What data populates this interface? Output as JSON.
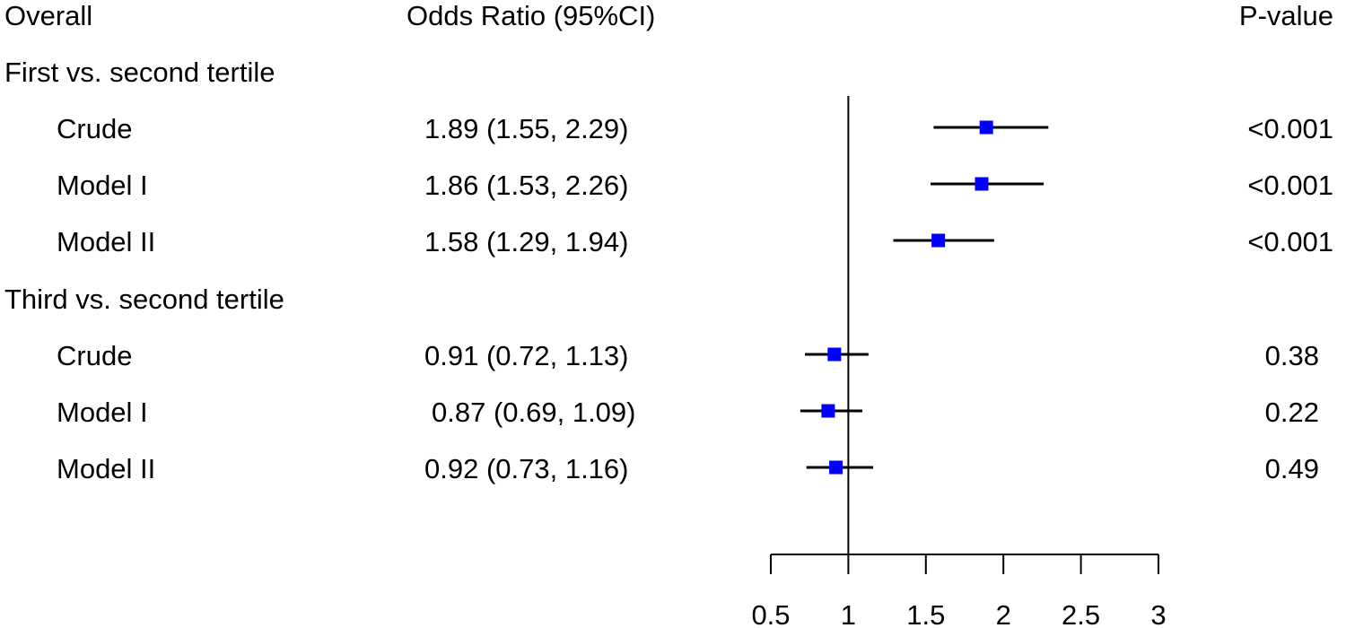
{
  "headers": {
    "label": "Overall",
    "or": "Odds Ratio (95%CI)",
    "p": "P-value"
  },
  "colors": {
    "marker": "#0000ff",
    "line": "#000000"
  },
  "chart_data": {
    "type": "forest",
    "xlabel": "",
    "xlim": [
      0.5,
      3
    ],
    "xticks": [
      0.5,
      1,
      1.5,
      2,
      2.5,
      3
    ],
    "xtick_labels": [
      "0.5",
      "1",
      "1.5",
      "2",
      "2.5",
      "3"
    ],
    "reference_line": 1,
    "groups": [
      {
        "label": "First vs. second tertile",
        "rows": [
          {
            "label": "Crude",
            "or_text": "1.89 (1.55, 2.29)",
            "or": 1.89,
            "lo": 1.55,
            "hi": 2.29,
            "p": "<0.001"
          },
          {
            "label": "Model I",
            "or_text": "1.86 (1.53, 2.26)",
            "or": 1.86,
            "lo": 1.53,
            "hi": 2.26,
            "p": "<0.001"
          },
          {
            "label": "Model II",
            "or_text": "1.58 (1.29, 1.94)",
            "or": 1.58,
            "lo": 1.29,
            "hi": 1.94,
            "p": "<0.001"
          }
        ]
      },
      {
        "label": "Third vs. second tertile",
        "rows": [
          {
            "label": "Crude",
            "or_text": "0.91 (0.72, 1.13)",
            "or": 0.91,
            "lo": 0.72,
            "hi": 1.13,
            "p": "0.38"
          },
          {
            "label": "Model I",
            "or_text": "0.87 (0.69, 1.09)",
            "or": 0.87,
            "lo": 0.69,
            "hi": 1.09,
            "p": "0.22"
          },
          {
            "label": "Model II",
            "or_text": "0.92 (0.73, 1.16)",
            "or": 0.92,
            "lo": 0.73,
            "hi": 1.16,
            "p": "0.49"
          }
        ]
      }
    ]
  }
}
